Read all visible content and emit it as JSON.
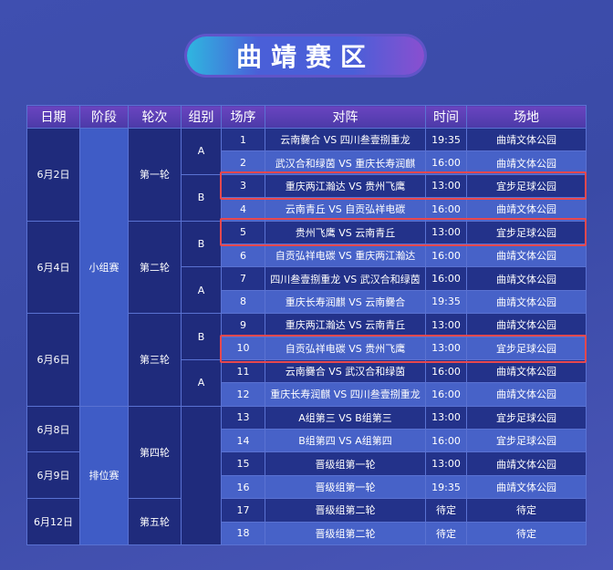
{
  "title": "曲靖赛区",
  "table": {
    "headers": [
      "日期",
      "阶段",
      "轮次",
      "组别",
      "场序",
      "对阵",
      "时间",
      "场地"
    ],
    "dates": [
      "6月2日",
      "6月4日",
      "6月6日",
      "6月8日",
      "6月9日",
      "6月12日"
    ],
    "stages": [
      "小组赛",
      "排位赛"
    ],
    "rounds": [
      "第一轮",
      "第二轮",
      "第三轮",
      "第四轮",
      "第五轮"
    ],
    "groups": [
      "A",
      "B",
      "B",
      "A",
      "B",
      "A"
    ],
    "rows": [
      [
        1,
        "云南爨合 VS 四川叁壹捌重龙",
        "19:35",
        "曲靖文体公园"
      ],
      [
        2,
        "武汉合和绿茵 VS 重庆长寿润麒",
        "16:00",
        "曲靖文体公园"
      ],
      [
        3,
        "重庆两江瀚达 VS 贵州飞鹰",
        "13:00",
        "宜步足球公园"
      ],
      [
        4,
        "云南青丘 VS 自贡弘祥电碳",
        "16:00",
        "曲靖文体公园"
      ],
      [
        5,
        "贵州飞鹰 VS 云南青丘",
        "13:00",
        "宜步足球公园"
      ],
      [
        6,
        "自贡弘祥电碳 VS 重庆两江瀚达",
        "16:00",
        "曲靖文体公园"
      ],
      [
        7,
        "四川叁壹捌重龙 VS 武汉合和绿茵",
        "16:00",
        "曲靖文体公园"
      ],
      [
        8,
        "重庆长寿润麒 VS 云南爨合",
        "19:35",
        "曲靖文体公园"
      ],
      [
        9,
        "重庆两江瀚达 VS 云南青丘",
        "13:00",
        "曲靖文体公园"
      ],
      [
        10,
        "自贡弘祥电碳 VS 贵州飞鹰",
        "13:00",
        "宜步足球公园"
      ],
      [
        11,
        "云南爨合 VS 武汉合和绿茵",
        "16:00",
        "曲靖文体公园"
      ],
      [
        12,
        "重庆长寿润麒 VS 四川叁壹捌重龙",
        "16:00",
        "曲靖文体公园"
      ],
      [
        13,
        "A组第三 VS B组第三",
        "13:00",
        "宜步足球公园"
      ],
      [
        14,
        "B组第四 VS A组第四",
        "16:00",
        "宜步足球公园"
      ],
      [
        15,
        "晋级组第一轮",
        "13:00",
        "曲靖文体公园"
      ],
      [
        16,
        "晋级组第一轮",
        "19:35",
        "曲靖文体公园"
      ],
      [
        17,
        "晋级组第二轮",
        "待定",
        "待定"
      ],
      [
        18,
        "晋级组第二轮",
        "待定",
        "待定"
      ]
    ]
  }
}
